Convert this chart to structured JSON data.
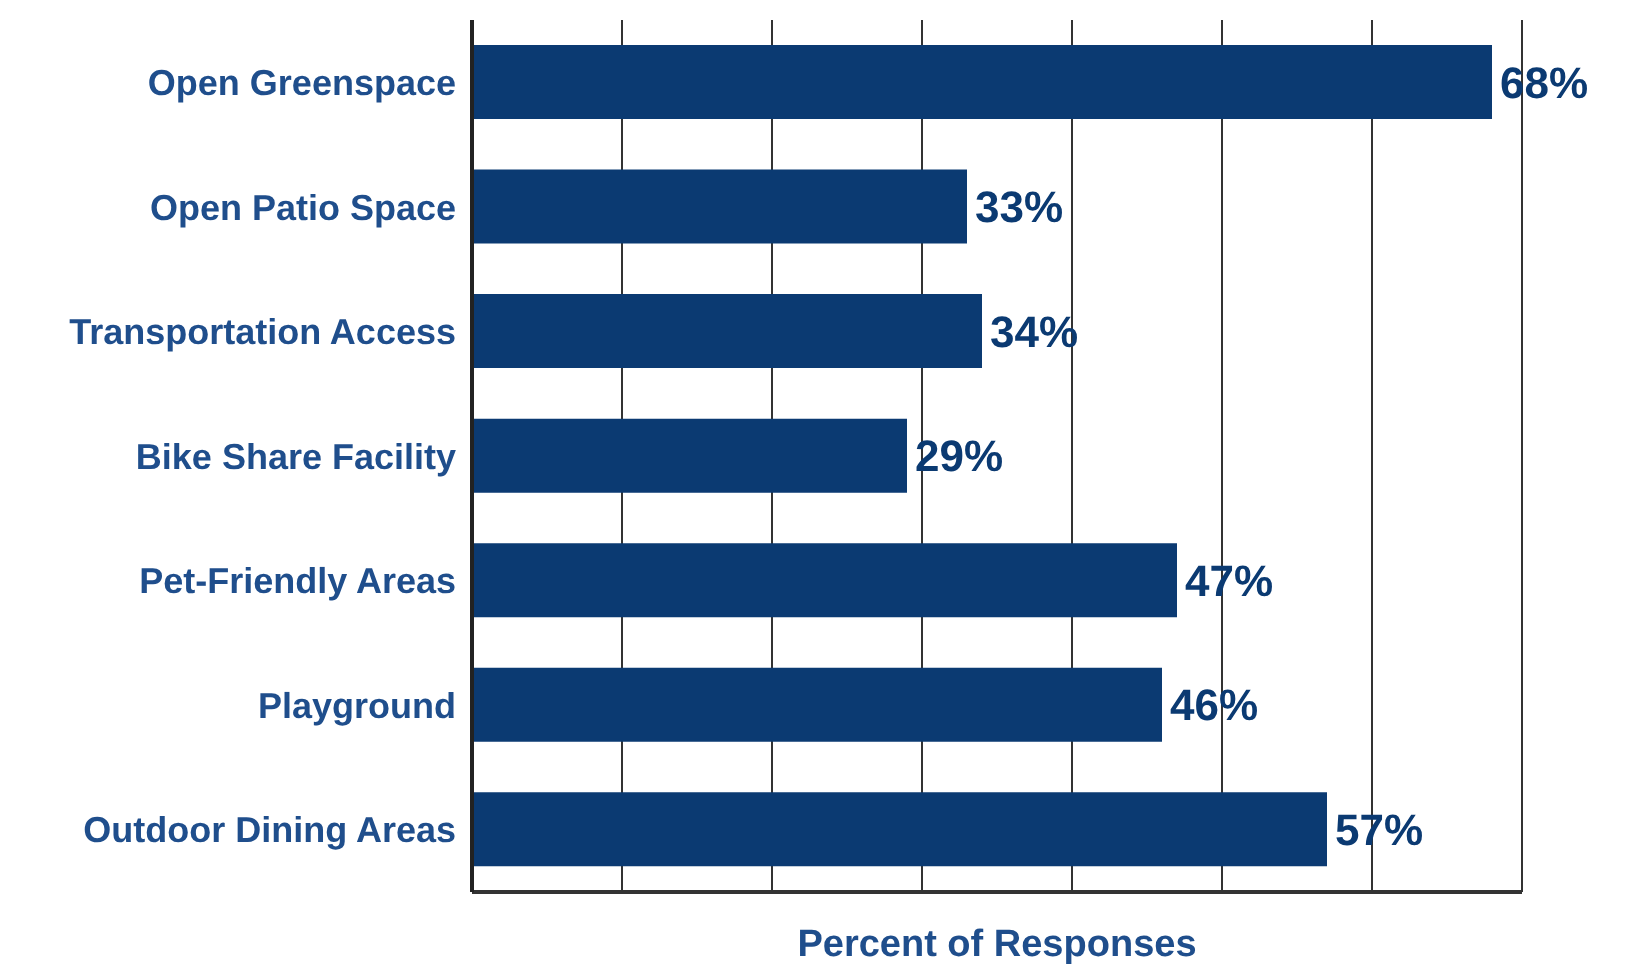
{
  "chart_data": {
    "type": "bar",
    "orientation": "horizontal",
    "xlabel": "Percent of Responses",
    "categories": [
      "Open Greenspace",
      "Open Patio Space",
      "Transportation Access",
      "Bike Share Facility",
      "Pet-Friendly Areas",
      "Playground",
      "Outdoor Dining Areas"
    ],
    "values": [
      68,
      33,
      34,
      29,
      47,
      46,
      57
    ],
    "value_labels": [
      "68%",
      "33%",
      "34%",
      "29%",
      "47%",
      "46%",
      "57%"
    ],
    "color": "#0b3a72",
    "xlim": [
      0,
      70
    ],
    "grid": "x",
    "tick_labels": "y",
    "legend": false
  }
}
